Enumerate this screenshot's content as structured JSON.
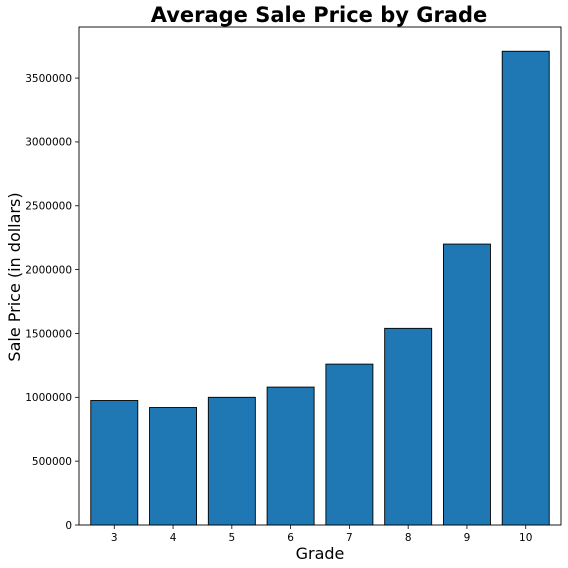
{
  "chart_data": {
    "type": "bar",
    "title": "Average Sale Price by Grade",
    "xlabel": "Grade",
    "ylabel": "Sale Price (in dollars)",
    "categories": [
      "3",
      "4",
      "5",
      "6",
      "7",
      "8",
      "9",
      "10"
    ],
    "values": [
      975000,
      920000,
      1000000,
      1080000,
      1260000,
      1540000,
      2200000,
      3710000
    ],
    "ylim": [
      0,
      3900000
    ],
    "yticks": [
      "0",
      "500000",
      "1000000",
      "1500000",
      "2000000",
      "2500000",
      "3000000",
      "3500000"
    ],
    "grid": false,
    "legend": "none",
    "bar_color": "#1f77b4",
    "edge_color": "#000000"
  }
}
